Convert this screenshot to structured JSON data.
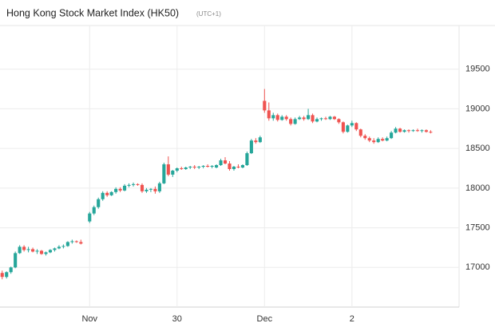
{
  "chart_data": {
    "type": "candlestick",
    "title": "Hong Kong Stock Market Index (HK50)",
    "subtitle": "(UTC+1)",
    "up_color": "#26a69a",
    "down_color": "#ef5350",
    "grid": true,
    "xlim": [
      -0.5,
      104.5
    ],
    "xticks": [
      {
        "value": 20,
        "label": "Nov"
      },
      {
        "value": 40,
        "label": "30"
      },
      {
        "value": 60,
        "label": "Dec"
      },
      {
        "value": 80,
        "label": "2"
      }
    ],
    "ylim": [
      16500,
      20050
    ],
    "yticks": [
      17000,
      17500,
      18000,
      18500,
      19000,
      19500
    ],
    "x": [
      0,
      1,
      2,
      3,
      4,
      5,
      6,
      7,
      8,
      9,
      10,
      11,
      12,
      13,
      14,
      15,
      16,
      17,
      18,
      20,
      21,
      22,
      23,
      24,
      25,
      26,
      27,
      28,
      29,
      30,
      31,
      32,
      33,
      34,
      35,
      36,
      37,
      38,
      39,
      40,
      41,
      42,
      43,
      44,
      45,
      46,
      47,
      48,
      49,
      50,
      51,
      52,
      53,
      54,
      55,
      56,
      57,
      58,
      59,
      60,
      61,
      62,
      63,
      64,
      65,
      66,
      67,
      68,
      69,
      70,
      71,
      72,
      73,
      74,
      75,
      76,
      77,
      78,
      79,
      80,
      81,
      82,
      83,
      84,
      85,
      86,
      87,
      88,
      89,
      90,
      91,
      92,
      93,
      94,
      95,
      96,
      97,
      98
    ],
    "open": [
      16930,
      16880,
      16940,
      17000,
      17180,
      17260,
      17220,
      17230,
      17200,
      17210,
      17170,
      17190,
      17220,
      17240,
      17260,
      17270,
      17320,
      17330,
      17320,
      17580,
      17680,
      17760,
      17860,
      17940,
      17910,
      17950,
      17990,
      17970,
      18030,
      18040,
      18050,
      18040,
      17960,
      17980,
      17990,
      17960,
      18060,
      18300,
      18170,
      18220,
      18250,
      18240,
      18260,
      18270,
      18260,
      18270,
      18280,
      18270,
      18260,
      18290,
      18350,
      18310,
      18240,
      18270,
      18260,
      18290,
      18440,
      18600,
      18580,
      19100,
      18980,
      18880,
      18920,
      18860,
      18900,
      18870,
      18810,
      18870,
      18890,
      18870,
      18920,
      18840,
      18870,
      18880,
      18870,
      18900,
      18870,
      18830,
      18710,
      18790,
      18820,
      18740,
      18660,
      18630,
      18600,
      18580,
      18620,
      18600,
      18630,
      18700,
      18750,
      18710,
      18730,
      18720,
      18730,
      18720,
      18730,
      18710
    ],
    "high": [
      16960,
      16950,
      17010,
      17200,
      17280,
      17280,
      17260,
      17250,
      17230,
      17220,
      17200,
      17230,
      17250,
      17280,
      17290,
      17330,
      17350,
      17340,
      17350,
      17700,
      17780,
      17880,
      17960,
      17960,
      17960,
      18010,
      18010,
      18050,
      18060,
      18070,
      18060,
      18060,
      18000,
      18000,
      18020,
      18080,
      18320,
      18400,
      18230,
      18260,
      18270,
      18270,
      18280,
      18290,
      18280,
      18290,
      18300,
      18290,
      18300,
      18370,
      18390,
      18340,
      18280,
      18300,
      18300,
      18460,
      18620,
      18630,
      18660,
      19250,
      19080,
      18950,
      18940,
      18920,
      18920,
      18890,
      18890,
      18910,
      18910,
      19000,
      18940,
      18890,
      18890,
      18900,
      18910,
      18910,
      18880,
      18840,
      18800,
      18850,
      18830,
      18750,
      18680,
      18650,
      18630,
      18640,
      18640,
      18650,
      18720,
      18770,
      18760,
      18740,
      18740,
      18740,
      18750,
      18740,
      18740,
      18730
    ],
    "low": [
      16850,
      16860,
      16920,
      16990,
      17170,
      17200,
      17190,
      17190,
      17170,
      17160,
      17150,
      17180,
      17200,
      17230,
      17240,
      17260,
      17300,
      17310,
      17290,
      17560,
      17660,
      17740,
      17840,
      17890,
      17900,
      17930,
      17950,
      17960,
      18010,
      18020,
      18030,
      17940,
      17940,
      17950,
      17930,
      17940,
      18050,
      18150,
      18140,
      18200,
      18230,
      18230,
      18240,
      18240,
      18240,
      18250,
      18260,
      18250,
      18250,
      18280,
      18300,
      18220,
      18220,
      18250,
      18250,
      18280,
      18430,
      18560,
      18570,
      18950,
      18850,
      18850,
      18840,
      18850,
      18850,
      18790,
      18800,
      18860,
      18850,
      18860,
      18820,
      18830,
      18850,
      18860,
      18860,
      18860,
      18810,
      18690,
      18700,
      18770,
      18720,
      18640,
      18610,
      18580,
      18560,
      18570,
      18590,
      18590,
      18620,
      18690,
      18700,
      18700,
      18700,
      18710,
      18710,
      18700,
      18700,
      18690
    ],
    "close": [
      16880,
      16940,
      17000,
      17180,
      17260,
      17220,
      17230,
      17200,
      17210,
      17170,
      17190,
      17220,
      17240,
      17260,
      17270,
      17320,
      17330,
      17320,
      17300,
      17680,
      17760,
      17860,
      17940,
      17910,
      17950,
      17990,
      17970,
      18030,
      18040,
      18050,
      18040,
      17960,
      17980,
      17990,
      17960,
      18060,
      18300,
      18170,
      18220,
      18250,
      18240,
      18260,
      18270,
      18260,
      18270,
      18280,
      18270,
      18280,
      18290,
      18350,
      18310,
      18240,
      18270,
      18260,
      18290,
      18440,
      18600,
      18580,
      18640,
      18980,
      18880,
      18920,
      18860,
      18900,
      18870,
      18810,
      18870,
      18890,
      18870,
      18920,
      18840,
      18870,
      18880,
      18870,
      18900,
      18870,
      18830,
      18710,
      18790,
      18820,
      18740,
      18660,
      18630,
      18600,
      18580,
      18620,
      18600,
      18630,
      18700,
      18750,
      18710,
      18730,
      18720,
      18730,
      18720,
      18730,
      18710,
      18700
    ]
  }
}
